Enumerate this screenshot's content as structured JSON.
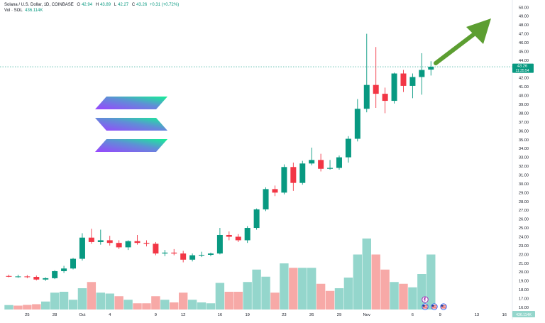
{
  "header": {
    "symbol_title": "Solana / U.S. Dollar, 1D, COINBASE",
    "open_label": "O",
    "open_value": "42.94",
    "high_label": "H",
    "high_value": "43.89",
    "low_label": "L",
    "low_value": "42.27",
    "close_label": "C",
    "close_value": "43.26",
    "change_value": "+0.31 (+0.72%)",
    "volume_label": "Vol · SOL",
    "volume_value": "436.114K"
  },
  "price_badge": {
    "price": "43.26",
    "countdown": "11:35:54"
  },
  "volume_badge": "436.114K",
  "colors": {
    "up": "#089981",
    "down": "#f23645",
    "vol_up": "#94d6cc",
    "vol_down": "#f7a9a7",
    "arrow": "#5c9e31",
    "grid_text": "#131722"
  },
  "icons": {
    "logo": "solana-logo",
    "arrow": "up-trend-arrow-icon",
    "events": [
      "tradingview-event-icon",
      "us-flag-icon",
      "us-flag-icon"
    ]
  },
  "chart_data": {
    "type": "candlestick",
    "interval": "1D",
    "y_axis": {
      "ticks": [
        "16.00",
        "17.00",
        "18.00",
        "19.00",
        "20.00",
        "21.00",
        "22.00",
        "23.00",
        "24.00",
        "25.00",
        "26.00",
        "27.00",
        "28.00",
        "29.00",
        "30.00",
        "31.00",
        "32.00",
        "33.00",
        "34.00",
        "35.00",
        "36.00",
        "37.00",
        "38.00",
        "39.00",
        "40.00",
        "41.00",
        "42.00",
        "43.00",
        "44.00",
        "45.00",
        "46.00",
        "47.00",
        "48.00",
        "49.00",
        "50.00"
      ],
      "range": [
        16,
        50.5
      ]
    },
    "x_axis": {
      "ticks": [
        {
          "label": "25",
          "index": 2
        },
        {
          "label": "28",
          "index": 5
        },
        {
          "label": "Oct",
          "index": 8
        },
        {
          "label": "4",
          "index": 11
        },
        {
          "label": "9",
          "index": 16
        },
        {
          "label": "12",
          "index": 19
        },
        {
          "label": "16",
          "index": 23
        },
        {
          "label": "19",
          "index": 26
        },
        {
          "label": "23",
          "index": 30
        },
        {
          "label": "26",
          "index": 33
        },
        {
          "label": "29",
          "index": 36
        },
        {
          "label": "Nov",
          "index": 39
        },
        {
          "label": "6",
          "index": 44
        },
        {
          "label": "9",
          "index": 47
        },
        {
          "label": "13",
          "index": 51
        },
        {
          "label": "16",
          "index": 54
        }
      ]
    },
    "candles": [
      {
        "o": 19.55,
        "h": 19.7,
        "l": 19.4,
        "c": 19.5
      },
      {
        "o": 19.5,
        "h": 19.7,
        "l": 19.35,
        "c": 19.5
      },
      {
        "o": 19.5,
        "h": 19.65,
        "l": 19.3,
        "c": 19.45
      },
      {
        "o": 19.45,
        "h": 19.6,
        "l": 19.05,
        "c": 19.15
      },
      {
        "o": 19.15,
        "h": 19.4,
        "l": 19.0,
        "c": 19.3
      },
      {
        "o": 19.3,
        "h": 20.2,
        "l": 19.2,
        "c": 20.1
      },
      {
        "o": 20.1,
        "h": 20.7,
        "l": 19.9,
        "c": 20.4
      },
      {
        "o": 20.4,
        "h": 21.6,
        "l": 20.3,
        "c": 21.5
      },
      {
        "o": 21.5,
        "h": 24.4,
        "l": 21.3,
        "c": 23.9
      },
      {
        "o": 23.9,
        "h": 24.9,
        "l": 23.2,
        "c": 23.4
      },
      {
        "o": 23.4,
        "h": 24.8,
        "l": 23.1,
        "c": 23.6
      },
      {
        "o": 23.6,
        "h": 24.1,
        "l": 23.0,
        "c": 23.3
      },
      {
        "o": 23.3,
        "h": 23.6,
        "l": 22.6,
        "c": 22.8
      },
      {
        "o": 22.8,
        "h": 23.6,
        "l": 22.5,
        "c": 23.5
      },
      {
        "o": 23.5,
        "h": 24.2,
        "l": 23.1,
        "c": 23.3
      },
      {
        "o": 23.3,
        "h": 23.6,
        "l": 22.9,
        "c": 23.2
      },
      {
        "o": 23.2,
        "h": 23.4,
        "l": 21.9,
        "c": 22.1
      },
      {
        "o": 22.1,
        "h": 22.5,
        "l": 21.8,
        "c": 22.2
      },
      {
        "o": 22.2,
        "h": 22.6,
        "l": 21.9,
        "c": 22.1
      },
      {
        "o": 22.1,
        "h": 22.4,
        "l": 21.1,
        "c": 21.4
      },
      {
        "o": 21.4,
        "h": 22.1,
        "l": 21.2,
        "c": 21.9
      },
      {
        "o": 21.9,
        "h": 22.3,
        "l": 21.7,
        "c": 21.95
      },
      {
        "o": 21.95,
        "h": 22.2,
        "l": 21.8,
        "c": 22.1
      },
      {
        "o": 22.1,
        "h": 25.0,
        "l": 22.0,
        "c": 24.2
      },
      {
        "o": 24.2,
        "h": 24.6,
        "l": 23.6,
        "c": 24.0
      },
      {
        "o": 24.0,
        "h": 24.3,
        "l": 23.4,
        "c": 23.6
      },
      {
        "o": 23.6,
        "h": 25.2,
        "l": 23.3,
        "c": 25.0
      },
      {
        "o": 25.0,
        "h": 27.2,
        "l": 24.8,
        "c": 27.1
      },
      {
        "o": 27.1,
        "h": 29.6,
        "l": 26.9,
        "c": 29.4
      },
      {
        "o": 29.4,
        "h": 29.8,
        "l": 28.6,
        "c": 29.0
      },
      {
        "o": 29.0,
        "h": 32.2,
        "l": 28.8,
        "c": 31.9
      },
      {
        "o": 31.9,
        "h": 32.4,
        "l": 29.2,
        "c": 30.1
      },
      {
        "o": 30.1,
        "h": 32.6,
        "l": 29.9,
        "c": 32.3
      },
      {
        "o": 32.3,
        "h": 34.1,
        "l": 32.1,
        "c": 32.7
      },
      {
        "o": 32.7,
        "h": 33.4,
        "l": 31.4,
        "c": 31.7
      },
      {
        "o": 31.7,
        "h": 32.7,
        "l": 31.6,
        "c": 31.8
      },
      {
        "o": 31.8,
        "h": 33.2,
        "l": 31.6,
        "c": 33.0
      },
      {
        "o": 33.0,
        "h": 35.4,
        "l": 32.4,
        "c": 35.1
      },
      {
        "o": 35.1,
        "h": 39.6,
        "l": 34.8,
        "c": 38.5
      },
      {
        "o": 38.5,
        "h": 47.0,
        "l": 38.1,
        "c": 41.2
      },
      {
        "o": 41.2,
        "h": 45.5,
        "l": 38.6,
        "c": 40.2
      },
      {
        "o": 40.2,
        "h": 40.9,
        "l": 38.0,
        "c": 39.4
      },
      {
        "o": 39.4,
        "h": 42.6,
        "l": 39.1,
        "c": 42.5
      },
      {
        "o": 42.5,
        "h": 42.9,
        "l": 40.4,
        "c": 41.1
      },
      {
        "o": 41.1,
        "h": 42.5,
        "l": 39.7,
        "c": 42.1
      },
      {
        "o": 42.1,
        "h": 44.8,
        "l": 40.1,
        "c": 42.9
      },
      {
        "o": 42.94,
        "h": 43.89,
        "l": 42.27,
        "c": 43.26
      }
    ],
    "volume": [
      {
        "v": 0.25,
        "dir": "up"
      },
      {
        "v": 0.22,
        "dir": "down"
      },
      {
        "v": 0.26,
        "dir": "down"
      },
      {
        "v": 0.3,
        "dir": "down"
      },
      {
        "v": 0.45,
        "dir": "up"
      },
      {
        "v": 0.95,
        "dir": "up"
      },
      {
        "v": 1.0,
        "dir": "up"
      },
      {
        "v": 0.55,
        "dir": "up"
      },
      {
        "v": 1.2,
        "dir": "up"
      },
      {
        "v": 1.55,
        "dir": "down"
      },
      {
        "v": 0.95,
        "dir": "up"
      },
      {
        "v": 0.9,
        "dir": "up"
      },
      {
        "v": 0.75,
        "dir": "down"
      },
      {
        "v": 0.55,
        "dir": "up"
      },
      {
        "v": 0.35,
        "dir": "down"
      },
      {
        "v": 0.35,
        "dir": "down"
      },
      {
        "v": 0.75,
        "dir": "down"
      },
      {
        "v": 0.55,
        "dir": "up"
      },
      {
        "v": 0.4,
        "dir": "down"
      },
      {
        "v": 0.95,
        "dir": "down"
      },
      {
        "v": 0.55,
        "dir": "up"
      },
      {
        "v": 0.4,
        "dir": "up"
      },
      {
        "v": 0.35,
        "dir": "up"
      },
      {
        "v": 1.5,
        "dir": "up"
      },
      {
        "v": 1.0,
        "dir": "down"
      },
      {
        "v": 1.0,
        "dir": "down"
      },
      {
        "v": 1.55,
        "dir": "up"
      },
      {
        "v": 2.25,
        "dir": "up"
      },
      {
        "v": 1.85,
        "dir": "up"
      },
      {
        "v": 0.95,
        "dir": "down"
      },
      {
        "v": 2.6,
        "dir": "up"
      },
      {
        "v": 2.35,
        "dir": "down"
      },
      {
        "v": 2.35,
        "dir": "up"
      },
      {
        "v": 2.35,
        "dir": "up"
      },
      {
        "v": 1.45,
        "dir": "down"
      },
      {
        "v": 1.05,
        "dir": "down"
      },
      {
        "v": 1.2,
        "dir": "up"
      },
      {
        "v": 1.8,
        "dir": "up"
      },
      {
        "v": 3.1,
        "dir": "up"
      },
      {
        "v": 4.0,
        "dir": "up"
      },
      {
        "v": 3.1,
        "dir": "down"
      },
      {
        "v": 2.25,
        "dir": "down"
      },
      {
        "v": 1.55,
        "dir": "up"
      },
      {
        "v": 1.45,
        "dir": "down"
      },
      {
        "v": 1.25,
        "dir": "up"
      },
      {
        "v": 2.0,
        "dir": "up"
      },
      {
        "v": 3.1,
        "dir": "up"
      }
    ]
  }
}
